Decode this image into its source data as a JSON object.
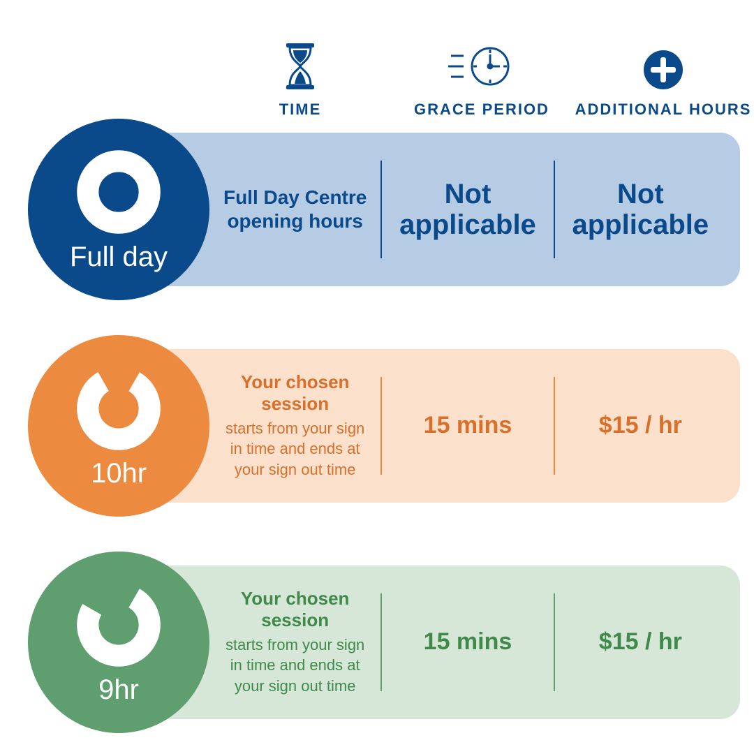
{
  "colors": {
    "primary_blue": "#0b4a8a",
    "header_text": "#0b4a8a"
  },
  "headers": {
    "time": "TIME",
    "grace": "GRACE PERIOD",
    "additional": "ADDITIONAL HOURS"
  },
  "rows": [
    {
      "id": "fullday",
      "badge_label": "Full day",
      "badge_color": "#0b4a8a",
      "row_bg": "#b6cce5",
      "text_color": "#0b4a8a",
      "divider_color": "#0b4a8a",
      "ring_type": "full",
      "time_title": "Full Day Centre opening hours",
      "time_sub": "",
      "grace": "Not applicable",
      "additional": "Not applicable",
      "big_fontsize": 40
    },
    {
      "id": "10hr",
      "badge_label": "10hr",
      "badge_color": "#ec8a3f",
      "row_bg": "#fbe0cb",
      "text_color": "#d86f2a",
      "divider_color": "#ec8a3f",
      "ring_type": "partial",
      "time_title": "Your chosen session",
      "time_sub": "starts from your sign in time and ends at your sign out time",
      "grace": "15 mins",
      "additional": "$15 / hr",
      "big_fontsize": 34
    },
    {
      "id": "9hr",
      "badge_label": "9hr",
      "badge_color": "#5f9e6e",
      "row_bg": "#d6e6d7",
      "text_color": "#3f8a4b",
      "divider_color": "#5f9e6e",
      "ring_type": "partial",
      "time_title": "Your chosen session",
      "time_sub": "starts from your sign in time and ends at your sign out time",
      "grace": "15 mins",
      "additional": "$15 / hr",
      "big_fontsize": 34
    }
  ],
  "layout": {
    "row_tops": [
      190,
      500,
      810
    ],
    "badge_tops": [
      170,
      480,
      790
    ]
  }
}
